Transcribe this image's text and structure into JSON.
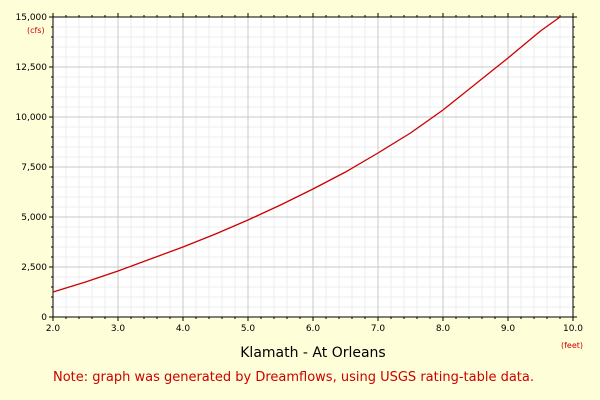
{
  "chart_data": {
    "type": "line",
    "title": "Klamath - At Orleans",
    "note": "Note: graph was generated by Dreamflows, using USGS rating-table data.",
    "x_unit_label": "(feet)",
    "y_unit_label": "(cfs)",
    "xlim": [
      2.0,
      10.0
    ],
    "ylim": [
      0,
      15000
    ],
    "x_tick_values": [
      2.0,
      3.0,
      4.0,
      5.0,
      6.0,
      7.0,
      8.0,
      9.0,
      10.0
    ],
    "x_tick_labels": [
      "2.0",
      "3.0",
      "4.0",
      "5.0",
      "6.0",
      "7.0",
      "8.0",
      "9.0",
      "10.0"
    ],
    "y_tick_values": [
      0,
      2500,
      5000,
      7500,
      10000,
      12500,
      15000
    ],
    "y_tick_labels": [
      "0",
      "2,500",
      "5,000",
      "7,500",
      "10,000",
      "12,500",
      "15,000"
    ],
    "grid": true,
    "series": [
      {
        "x": [
          2.0,
          2.5,
          3.0,
          3.5,
          4.0,
          4.5,
          5.0,
          5.5,
          6.0,
          6.5,
          7.0,
          7.5,
          8.0,
          8.5,
          9.0,
          9.5,
          9.8
        ],
        "y": [
          1250,
          1750,
          2300,
          2900,
          3500,
          4150,
          4850,
          5600,
          6400,
          7250,
          8200,
          9200,
          10350,
          11650,
          12950,
          14300,
          15000
        ]
      }
    ]
  },
  "colors": {
    "background": "#fefed9",
    "plot_background": "#ffffff",
    "line": "#cc0000",
    "major_grid": "#c8c8c8",
    "minor_grid": "#ececec",
    "axis": "#000000",
    "accent_text": "#cc0000"
  }
}
